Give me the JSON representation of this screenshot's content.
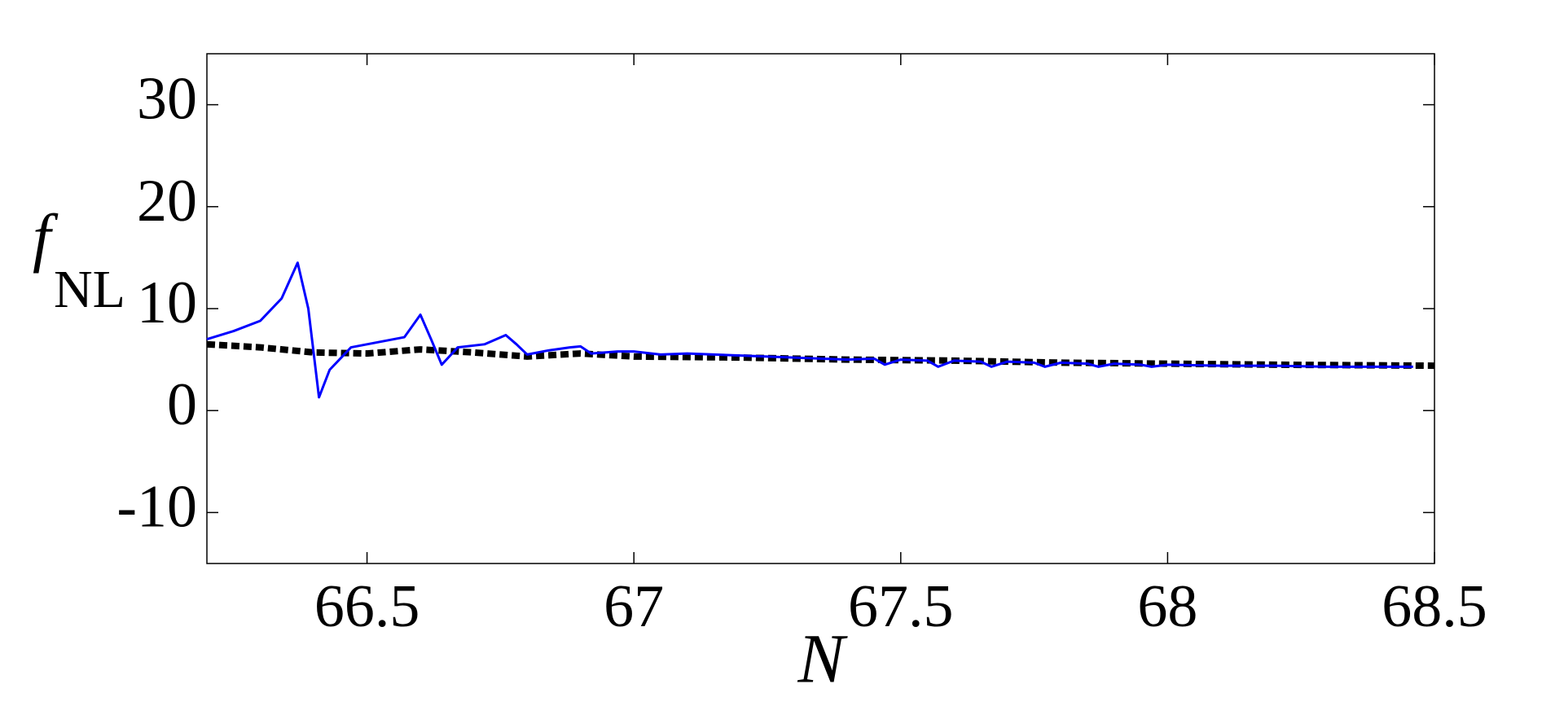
{
  "chart_data": {
    "type": "line",
    "xlabel": "N",
    "ylabel": "f",
    "ylabel_subscript": "NL",
    "xlim": [
      66.2,
      68.5
    ],
    "ylim": [
      -15,
      35
    ],
    "xticks": [
      66.5,
      67,
      67.5,
      68,
      68.5
    ],
    "yticks": [
      -10,
      0,
      10,
      20,
      30
    ],
    "grid": false,
    "series": [
      {
        "color": "#0000ff",
        "style": "solid",
        "x": [
          66.2,
          66.25,
          66.3,
          66.34,
          66.37,
          66.39,
          66.41,
          66.43,
          66.47,
          66.52,
          66.57,
          66.6,
          66.62,
          66.64,
          66.67,
          66.72,
          66.76,
          66.78,
          66.8,
          66.84,
          66.88,
          66.9,
          66.92,
          66.97,
          67.0,
          67.05,
          67.1,
          67.2,
          67.3,
          67.4,
          67.45,
          67.47,
          67.5,
          67.55,
          67.57,
          67.6,
          67.65,
          67.67,
          67.7,
          67.75,
          67.77,
          67.8,
          67.85,
          67.87,
          67.9,
          67.95,
          67.97,
          68.0,
          68.1,
          68.2,
          68.3,
          68.4,
          68.46
        ],
        "values": [
          7,
          7.8,
          8.8,
          11,
          14.5,
          10,
          1.3,
          4,
          6.2,
          6.7,
          7.2,
          9.4,
          7,
          4.5,
          6.2,
          6.5,
          7.4,
          6.5,
          5.5,
          5.9,
          6.2,
          6.3,
          5.6,
          5.8,
          5.8,
          5.5,
          5.6,
          5.4,
          5.2,
          5.0,
          5.1,
          4.5,
          5.0,
          4.9,
          4.3,
          4.9,
          4.8,
          4.3,
          4.8,
          4.7,
          4.3,
          4.7,
          4.6,
          4.3,
          4.6,
          4.5,
          4.3,
          4.5,
          4.4,
          4.4,
          4.3,
          4.3,
          4.3
        ]
      },
      {
        "color": "#000000",
        "style": "dashed",
        "x": [
          66.2,
          66.3,
          66.4,
          66.5,
          66.6,
          66.7,
          66.8,
          66.9,
          67.0,
          67.2,
          67.4,
          67.6,
          67.8,
          68.0,
          68.2,
          68.5
        ],
        "values": [
          6.5,
          6.2,
          5.7,
          5.6,
          6.0,
          5.7,
          5.3,
          5.6,
          5.3,
          5.2,
          5.0,
          4.9,
          4.7,
          4.6,
          4.5,
          4.4
        ]
      }
    ]
  }
}
